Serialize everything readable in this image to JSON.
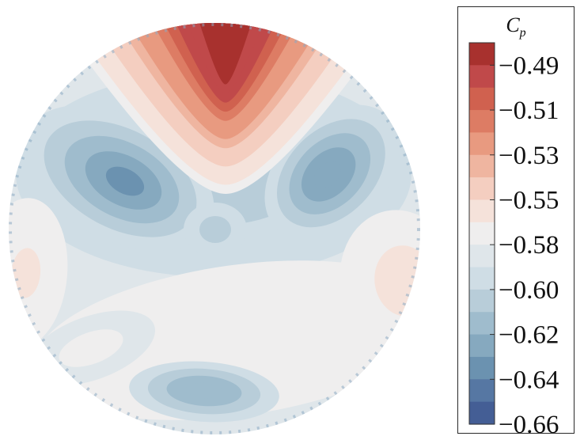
{
  "chart_data": {
    "type": "heatmap",
    "title": "",
    "colorbar": {
      "title": "C",
      "title_subscript": "p",
      "tick_labels": [
        "−0.49",
        "−0.51",
        "−0.53",
        "−0.55",
        "−0.58",
        "−0.60",
        "−0.62",
        "−0.64",
        "−0.66"
      ],
      "levels": [
        -0.49,
        -0.5,
        -0.51,
        -0.52,
        -0.53,
        -0.54,
        -0.55,
        -0.565,
        -0.58,
        -0.59,
        -0.6,
        -0.61,
        -0.62,
        -0.63,
        -0.64,
        -0.65,
        -0.66
      ],
      "colors": [
        "#a8312e",
        "#c0494a",
        "#d0614f",
        "#dd7c64",
        "#e89a80",
        "#efb5a0",
        "#f4cec0",
        "#f5e2da",
        "#efeeee",
        "#dfe6ea",
        "#cfdde5",
        "#b8cdd9",
        "#9fbccd",
        "#86a9bf",
        "#6b92b0",
        "#5677a3",
        "#445e95"
      ]
    },
    "domain": "circular disk",
    "features": [
      {
        "kind": "high",
        "label": "top red lobe",
        "value": -0.49
      },
      {
        "kind": "low",
        "label": "left blue lobe",
        "value": -0.635
      },
      {
        "kind": "low",
        "label": "right blue lobe",
        "value": -0.63
      },
      {
        "kind": "low",
        "label": "central small blue disk",
        "value": -0.61
      },
      {
        "kind": "high",
        "label": "left pink lobe",
        "value": -0.565
      },
      {
        "kind": "high",
        "label": "right pink lobe",
        "value": -0.56
      },
      {
        "kind": "low",
        "label": "bottom blue lobe",
        "value": -0.625
      }
    ]
  }
}
